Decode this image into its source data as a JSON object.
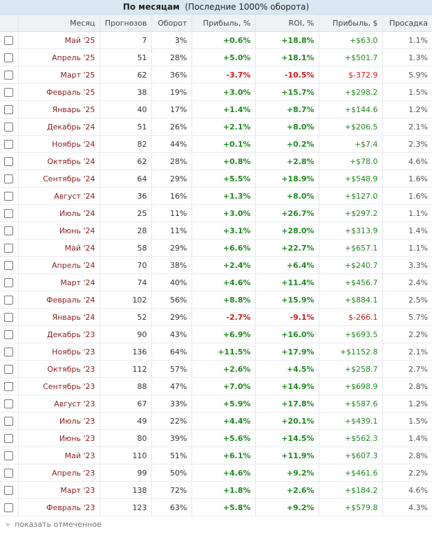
{
  "title": {
    "main": "По месяцам",
    "sub": "(Последние 1000% оборота)"
  },
  "columns": {
    "month": "Месяц",
    "forecasts": "Прогнозов",
    "turnover": "Оборот",
    "profit_pct": "Прибыль, %",
    "roi": "ROI, %",
    "profit_usd": "Прибыль, $",
    "drawdown": "Просадка"
  },
  "rows": [
    {
      "month": "Май '25",
      "forecasts": "7",
      "turnover": "3%",
      "profit_pct": "+0.6%",
      "roi": "+18.8%",
      "profit_usd": "+$63.0",
      "drawdown": "1.1%"
    },
    {
      "month": "Апрель '25",
      "forecasts": "51",
      "turnover": "28%",
      "profit_pct": "+5.0%",
      "roi": "+18.1%",
      "profit_usd": "+$501.7",
      "drawdown": "1.3%"
    },
    {
      "month": "Март '25",
      "forecasts": "62",
      "turnover": "36%",
      "profit_pct": "-3.7%",
      "roi": "-10.5%",
      "profit_usd": "$-372.9",
      "drawdown": "5.9%"
    },
    {
      "month": "Февраль '25",
      "forecasts": "38",
      "turnover": "19%",
      "profit_pct": "+3.0%",
      "roi": "+15.7%",
      "profit_usd": "+$298.2",
      "drawdown": "1.5%"
    },
    {
      "month": "Январь '25",
      "forecasts": "40",
      "turnover": "17%",
      "profit_pct": "+1.4%",
      "roi": "+8.7%",
      "profit_usd": "+$144.6",
      "drawdown": "1.2%"
    },
    {
      "month": "Декабрь '24",
      "forecasts": "51",
      "turnover": "26%",
      "profit_pct": "+2.1%",
      "roi": "+8.0%",
      "profit_usd": "+$206.5",
      "drawdown": "2.1%"
    },
    {
      "month": "Ноябрь '24",
      "forecasts": "82",
      "turnover": "44%",
      "profit_pct": "+0.1%",
      "roi": "+0.2%",
      "profit_usd": "+$7.4",
      "drawdown": "2.3%"
    },
    {
      "month": "Октябрь '24",
      "forecasts": "62",
      "turnover": "28%",
      "profit_pct": "+0.8%",
      "roi": "+2.8%",
      "profit_usd": "+$78.0",
      "drawdown": "4.6%"
    },
    {
      "month": "Сентябрь '24",
      "forecasts": "64",
      "turnover": "29%",
      "profit_pct": "+5.5%",
      "roi": "+18.9%",
      "profit_usd": "+$548.9",
      "drawdown": "1.6%"
    },
    {
      "month": "Август '24",
      "forecasts": "36",
      "turnover": "16%",
      "profit_pct": "+1.3%",
      "roi": "+8.0%",
      "profit_usd": "+$127.0",
      "drawdown": "1.6%"
    },
    {
      "month": "Июль '24",
      "forecasts": "25",
      "turnover": "11%",
      "profit_pct": "+3.0%",
      "roi": "+26.7%",
      "profit_usd": "+$297.2",
      "drawdown": "1.1%"
    },
    {
      "month": "Июнь '24",
      "forecasts": "28",
      "turnover": "11%",
      "profit_pct": "+3.1%",
      "roi": "+28.0%",
      "profit_usd": "+$313.9",
      "drawdown": "1.4%"
    },
    {
      "month": "Май '24",
      "forecasts": "58",
      "turnover": "29%",
      "profit_pct": "+6.6%",
      "roi": "+22.7%",
      "profit_usd": "+$657.1",
      "drawdown": "1.1%"
    },
    {
      "month": "Апрель '24",
      "forecasts": "70",
      "turnover": "38%",
      "profit_pct": "+2.4%",
      "roi": "+6.4%",
      "profit_usd": "+$240.7",
      "drawdown": "3.3%"
    },
    {
      "month": "Март '24",
      "forecasts": "74",
      "turnover": "40%",
      "profit_pct": "+4.6%",
      "roi": "+11.4%",
      "profit_usd": "+$456.7",
      "drawdown": "2.4%"
    },
    {
      "month": "Февраль '24",
      "forecasts": "102",
      "turnover": "56%",
      "profit_pct": "+8.8%",
      "roi": "+15.9%",
      "profit_usd": "+$884.1",
      "drawdown": "2.5%"
    },
    {
      "month": "Январь '24",
      "forecasts": "52",
      "turnover": "29%",
      "profit_pct": "-2.7%",
      "roi": "-9.1%",
      "profit_usd": "$-266.1",
      "drawdown": "5.7%"
    },
    {
      "month": "Декабрь '23",
      "forecasts": "90",
      "turnover": "43%",
      "profit_pct": "+6.9%",
      "roi": "+16.0%",
      "profit_usd": "+$693.5",
      "drawdown": "2.2%"
    },
    {
      "month": "Ноябрь '23",
      "forecasts": "136",
      "turnover": "64%",
      "profit_pct": "+11.5%",
      "roi": "+17.9%",
      "profit_usd": "+$1152.8",
      "drawdown": "2.1%"
    },
    {
      "month": "Октябрь '23",
      "forecasts": "112",
      "turnover": "57%",
      "profit_pct": "+2.6%",
      "roi": "+4.5%",
      "profit_usd": "+$258.7",
      "drawdown": "2.7%"
    },
    {
      "month": "Сентябрь '23",
      "forecasts": "88",
      "turnover": "47%",
      "profit_pct": "+7.0%",
      "roi": "+14.9%",
      "profit_usd": "+$698.9",
      "drawdown": "2.8%"
    },
    {
      "month": "Август '23",
      "forecasts": "67",
      "turnover": "33%",
      "profit_pct": "+5.9%",
      "roi": "+17.8%",
      "profit_usd": "+$587.6",
      "drawdown": "1.2%"
    },
    {
      "month": "Июль '23",
      "forecasts": "49",
      "turnover": "22%",
      "profit_pct": "+4.4%",
      "roi": "+20.1%",
      "profit_usd": "+$439.1",
      "drawdown": "1.5%"
    },
    {
      "month": "Июнь '23",
      "forecasts": "80",
      "turnover": "39%",
      "profit_pct": "+5.6%",
      "roi": "+14.5%",
      "profit_usd": "+$562.3",
      "drawdown": "1.4%"
    },
    {
      "month": "Май '23",
      "forecasts": "110",
      "turnover": "51%",
      "profit_pct": "+6.1%",
      "roi": "+11.9%",
      "profit_usd": "+$607.3",
      "drawdown": "2.8%"
    },
    {
      "month": "Апрель '23",
      "forecasts": "99",
      "turnover": "50%",
      "profit_pct": "+4.6%",
      "roi": "+9.2%",
      "profit_usd": "+$461.6",
      "drawdown": "2.2%"
    },
    {
      "month": "Март '23",
      "forecasts": "138",
      "turnover": "72%",
      "profit_pct": "+1.8%",
      "roi": "+2.6%",
      "profit_usd": "+$184.2",
      "drawdown": "4.6%"
    },
    {
      "month": "Февраль '23",
      "forecasts": "123",
      "turnover": "63%",
      "profit_pct": "+5.8%",
      "roi": "+9.2%",
      "profit_usd": "+$579.8",
      "drawdown": "4.3%"
    }
  ],
  "footer": {
    "arrow": "»",
    "link": "показать отмеченное"
  },
  "colors": {
    "positive": "#1e8a1e",
    "negative": "#d01818",
    "month": "#8a1c1c",
    "header_bg": "#d9e7f1"
  }
}
